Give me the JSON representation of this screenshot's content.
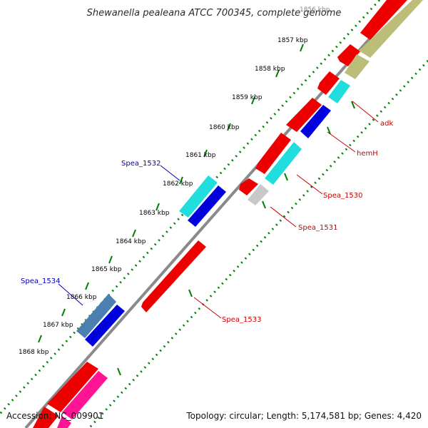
{
  "header": {
    "title": "Shewanella pealeana ATCC 700345, complete genome"
  },
  "footer": {
    "accession": "Accession: NC_009901",
    "summary": "Topology: circular; Length: 5,174,581 bp; Genes: 4,420"
  },
  "colors": {
    "backbone": "#8a8a8a",
    "tick": "#008000",
    "forward": "#ee0000",
    "reverse_blue": "#0000dd",
    "cyan": "#22dddd",
    "olive": "#bdbd7a",
    "pink": "#ff1493",
    "steel": "#4a7fb0",
    "grey_gene": "#c8c8c8"
  },
  "scale": {
    "labels": [
      "1856 kbp",
      "1857 kbp",
      "1858 kbp",
      "1859 kbp",
      "1860 kbp",
      "1861 kbp",
      "1862 kbp",
      "1863 kbp",
      "1864 kbp",
      "1865 kbp",
      "1866 kbp",
      "1867 kbp",
      "1868 kbp"
    ]
  },
  "gene_labels": {
    "adk": "adk",
    "hemH": "hemH",
    "spea_1530": "Spea_1530",
    "spea_1531": "Spea_1531",
    "spea_1532": "Spea_1532",
    "spea_1533": "Spea_1533",
    "spea_1534": "Spea_1534"
  }
}
